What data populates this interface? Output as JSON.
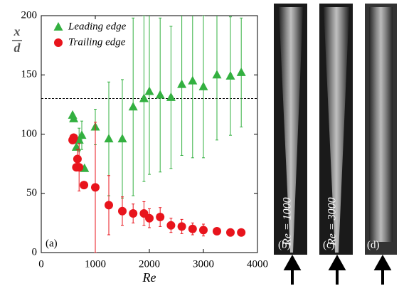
{
  "chart_data": {
    "type": "scatter",
    "x_label": "Re",
    "y_label": {
      "numerator": "x",
      "denominator": "d"
    },
    "panel_label": "(a)",
    "xlim": [
      0,
      4000
    ],
    "xticks": [
      0,
      1000,
      2000,
      3000,
      4000
    ],
    "ylim": [
      0,
      200
    ],
    "yticks": [
      0,
      50,
      100,
      150,
      200
    ],
    "reference_line": 130,
    "series": [
      {
        "name": "Leading edge",
        "color": "#33b040",
        "marker": "triangle",
        "x": [
          580,
          600,
          650,
          700,
          750,
          800,
          1000,
          1250,
          1500,
          1700,
          1900,
          2000,
          2200,
          2400,
          2600,
          2800,
          3000,
          3250,
          3500,
          3700
        ],
        "values": [
          116,
          113,
          89,
          95,
          99,
          71,
          106,
          96,
          96,
          123,
          130,
          136,
          133,
          131,
          142,
          145,
          140,
          150,
          149,
          152
        ],
        "errors": [
          0,
          0,
          0,
          10,
          12,
          0,
          15,
          48,
          50,
          75,
          70,
          70,
          65,
          60,
          60,
          65,
          60,
          55,
          50,
          46
        ]
      },
      {
        "name": "Trailing edge",
        "color": "#e8141c",
        "marker": "circle",
        "x": [
          580,
          600,
          650,
          670,
          700,
          790,
          1000,
          1250,
          1500,
          1700,
          1900,
          2000,
          2200,
          2400,
          2600,
          2800,
          3000,
          3250,
          3500,
          3700
        ],
        "values": [
          95,
          97,
          72,
          79,
          72,
          57,
          55,
          40,
          35,
          33,
          33,
          29,
          30,
          23,
          22,
          20,
          19,
          18,
          17,
          17
        ],
        "errors": [
          0,
          0,
          0,
          8,
          20,
          0,
          55,
          25,
          12,
          8,
          10,
          8,
          8,
          6,
          6,
          5,
          5,
          3,
          3,
          2
        ]
      }
    ],
    "images": [
      {
        "caption": "Re = 1000",
        "label": "(b)"
      },
      {
        "caption": "Re = 3000",
        "label": "(c)"
      },
      {
        "label": "(d)"
      }
    ]
  }
}
